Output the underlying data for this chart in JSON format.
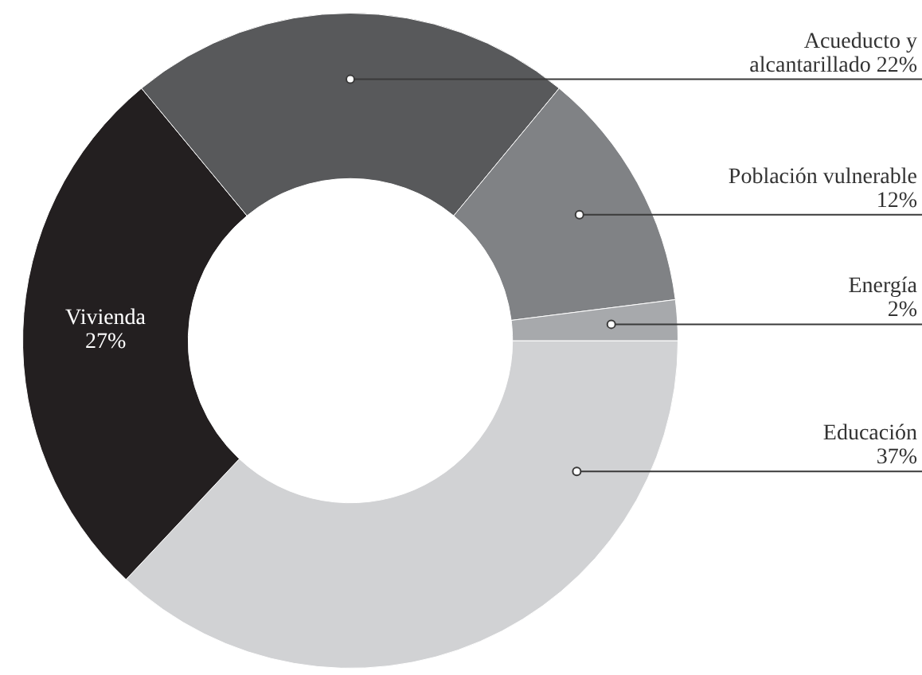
{
  "chart_data": {
    "type": "donut",
    "categories": [
      "Educación",
      "Vivienda",
      "Acueducto y alcantarillado",
      "Población vulnerable",
      "Energía"
    ],
    "values": [
      37,
      27,
      22,
      12,
      2
    ],
    "colors": [
      "#d1d2d4",
      "#231f20",
      "#58595b",
      "#808285",
      "#a7a9ac"
    ],
    "value_labels": [
      "37%",
      "27%",
      "22%",
      "12%",
      "2%"
    ]
  }
}
